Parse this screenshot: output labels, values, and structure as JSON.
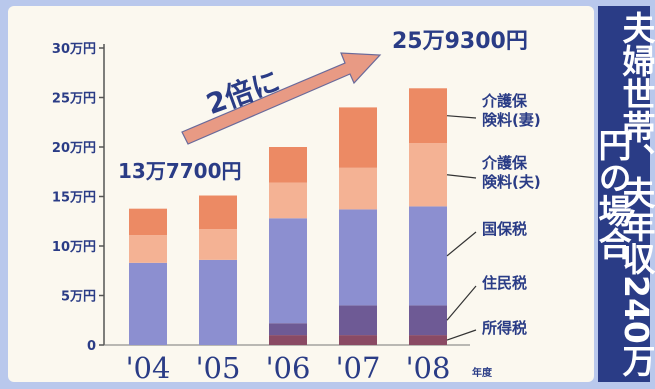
{
  "side_title": "夫婦世帯、夫年収240万円の場合",
  "colors": {
    "background": "#b9c8ec",
    "panel": "#fbf8ef",
    "side_bar": "#2a3c86",
    "text_dark": "#2a3c86",
    "arrow": "#e89a84",
    "income_tax": "#8a4a64",
    "resident_tax": "#6e5a95",
    "national_health": "#8c8fd0",
    "care_husband": "#f4b294",
    "care_wife": "#ec8a64"
  },
  "chart_data": {
    "type": "bar",
    "stacked": true,
    "categories": [
      "'04",
      "'05",
      "'06",
      "'07",
      "'08"
    ],
    "x_unit": "年度",
    "ylim": [
      0,
      300000
    ],
    "yticks": [
      0,
      50000,
      100000,
      150000,
      200000,
      250000,
      300000
    ],
    "ytick_labels": [
      "0",
      "5万円",
      "10万円",
      "15万円",
      "20万円",
      "25万円",
      "30万円"
    ],
    "series": [
      {
        "name": "所得税",
        "color": "#8a4a64",
        "values": [
          0,
          0,
          10000,
          10000,
          10000
        ]
      },
      {
        "name": "住民税",
        "color": "#6e5a95",
        "values": [
          0,
          0,
          12000,
          30000,
          30000
        ]
      },
      {
        "name": "国保税",
        "color": "#8c8fd0",
        "values": [
          83000,
          86000,
          106000,
          97000,
          100000
        ]
      },
      {
        "name": "介護保険料(夫)",
        "color": "#f4b294",
        "values": [
          28000,
          31000,
          36000,
          42000,
          64000
        ]
      },
      {
        "name": "介護保険料(妻)",
        "color": "#ec8a64",
        "values": [
          26700,
          34000,
          36000,
          61000,
          55300
        ]
      }
    ],
    "annotations": {
      "first_total": "13万7700円",
      "last_total": "25万9300円",
      "arrow_label": "2倍に"
    }
  }
}
